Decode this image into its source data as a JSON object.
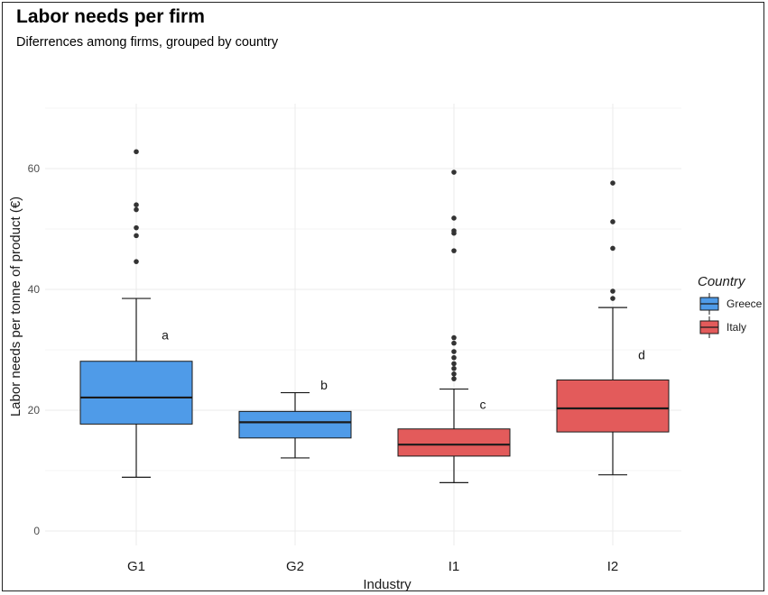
{
  "chart_data": {
    "type": "boxplot",
    "title": "Labor needs per firm",
    "subtitle": "Diferrences among firms, grouped by country",
    "xlabel": "Industry",
    "ylabel": "Labor needs per tonne of product (€)",
    "ylim": [
      -2,
      72
    ],
    "yticks": [
      0,
      20,
      40,
      60
    ],
    "grid": true,
    "legend": {
      "title": "Country",
      "position": "right",
      "entries": [
        {
          "name": "Greece",
          "color": "#4f9be8"
        },
        {
          "name": "Italy",
          "color": "#e35b5b"
        }
      ]
    },
    "categories": [
      "G1",
      "G2",
      "I1",
      "I2"
    ],
    "boxes": [
      {
        "category": "G1",
        "country": "Greece",
        "whisker_low": 8.9,
        "q1": 17.7,
        "median": 22.1,
        "q3": 28.1,
        "whisker_high": 38.5,
        "outliers": [
          44.6,
          48.9,
          50.2,
          53.2,
          54.0,
          62.8
        ],
        "label": "a"
      },
      {
        "category": "G2",
        "country": "Greece",
        "whisker_low": 12.1,
        "q1": 15.4,
        "median": 18.0,
        "q3": 19.8,
        "whisker_high": 22.9,
        "outliers": [],
        "label": "b"
      },
      {
        "category": "I1",
        "country": "Italy",
        "whisker_low": 8.0,
        "q1": 12.4,
        "median": 14.3,
        "q3": 16.9,
        "whisker_high": 23.5,
        "outliers": [
          25.2,
          26.0,
          26.9,
          27.7,
          28.7,
          29.7,
          31.1,
          32.0,
          46.4,
          49.3,
          49.7,
          51.8,
          59.4
        ],
        "label": "c"
      },
      {
        "category": "I2",
        "country": "Italy",
        "whisker_low": 9.3,
        "q1": 16.4,
        "median": 20.3,
        "q3": 25.0,
        "whisker_high": 37.0,
        "outliers": [
          38.5,
          39.7,
          46.8,
          51.2,
          57.6
        ],
        "label": "d"
      }
    ],
    "group_label_y": [
      32.5,
      24.2,
      21.0,
      29.2
    ]
  }
}
